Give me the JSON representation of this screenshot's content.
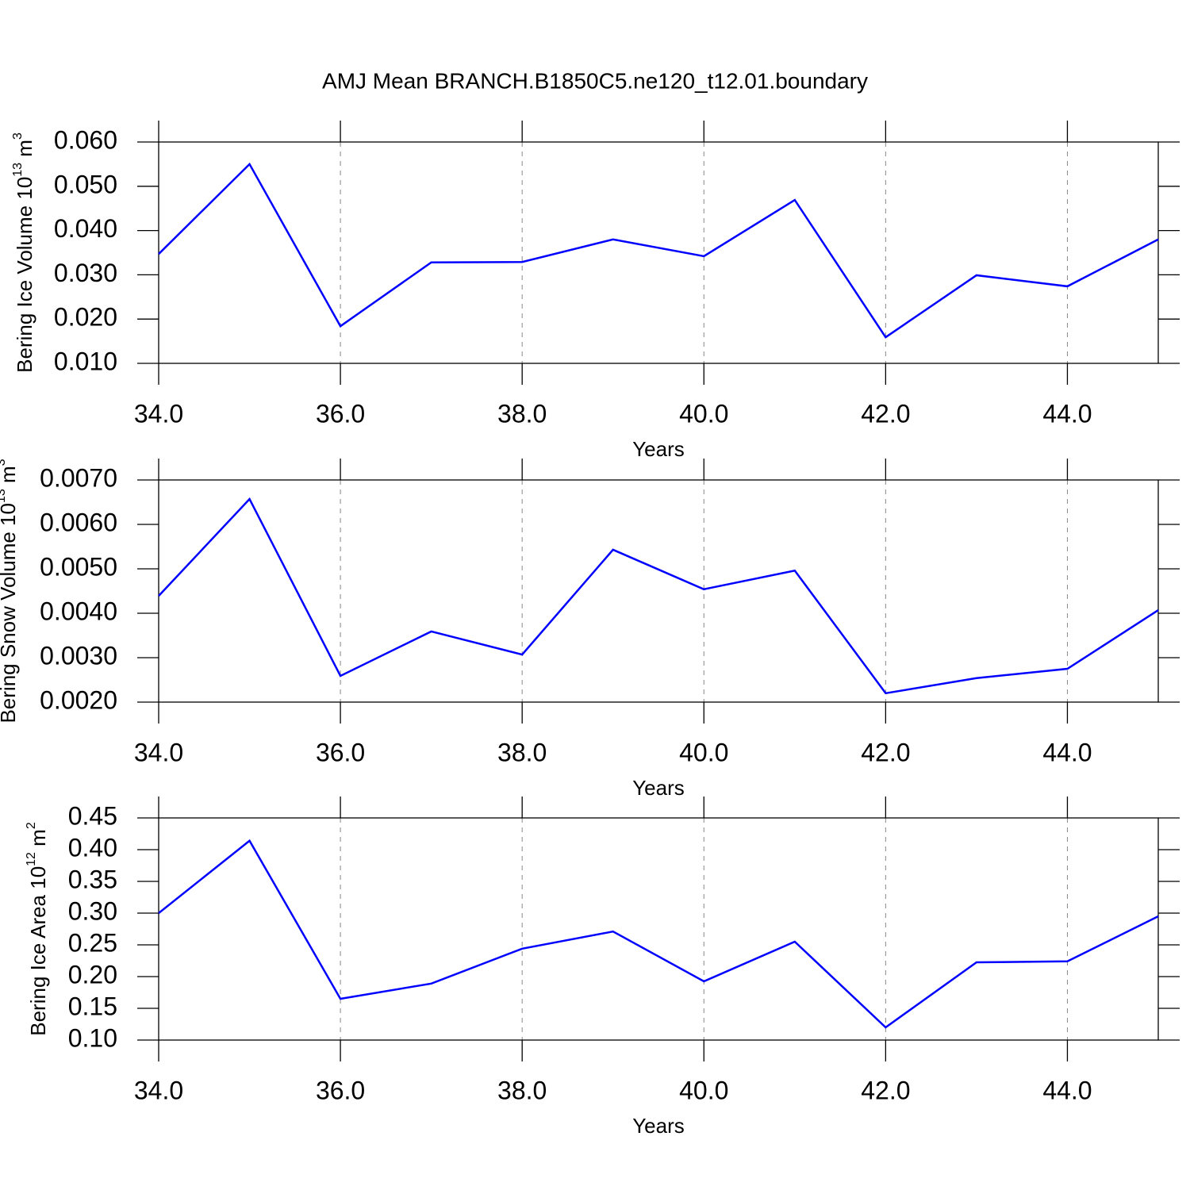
{
  "title": "AMJ Mean BRANCH.B1850C5.ne120_t12.01.boundary",
  "chart_data": [
    {
      "type": "line",
      "color": "#0000ff",
      "ylabel": {
        "text": "Bering Ice Volume 10",
        "exp": "13",
        "unit": " m",
        "unit_exp": "3"
      },
      "xlabel": "Years",
      "x": [
        34,
        35,
        36,
        37,
        38,
        39,
        40,
        41,
        42,
        43,
        44,
        45
      ],
      "values": [
        0.0347,
        0.055,
        0.0184,
        0.0328,
        0.0329,
        0.038,
        0.0342,
        0.0469,
        0.0159,
        0.0299,
        0.0274,
        0.038
      ],
      "xlim": [
        34,
        45
      ],
      "xticks": [
        {
          "value": 34,
          "label": "34.0"
        },
        {
          "value": 36,
          "label": "36.0"
        },
        {
          "value": 38,
          "label": "38.0"
        },
        {
          "value": 40,
          "label": "40.0"
        },
        {
          "value": 42,
          "label": "42.0"
        },
        {
          "value": 44,
          "label": "44.0"
        }
      ],
      "ylim": [
        0.01,
        0.06
      ],
      "yticks": [
        {
          "value": 0.01,
          "label": "0.010"
        },
        {
          "value": 0.02,
          "label": "0.020"
        },
        {
          "value": 0.03,
          "label": "0.030"
        },
        {
          "value": 0.04,
          "label": "0.040"
        },
        {
          "value": 0.05,
          "label": "0.050"
        },
        {
          "value": 0.06,
          "label": "0.060"
        }
      ],
      "xgrid": true
    },
    {
      "type": "line",
      "color": "#0000ff",
      "ylabel": {
        "text": "Bering Snow Volume 10",
        "exp": "13",
        "unit": " m",
        "unit_exp": "3"
      },
      "xlabel": "Years",
      "x": [
        34,
        35,
        36,
        37,
        38,
        39,
        40,
        41,
        42,
        43,
        44,
        45
      ],
      "values": [
        0.00439,
        0.00657,
        0.00259,
        0.00359,
        0.00307,
        0.00543,
        0.00454,
        0.00496,
        0.0022,
        0.00254,
        0.00275,
        0.00407
      ],
      "xlim": [
        34,
        45
      ],
      "xticks": [
        {
          "value": 34,
          "label": "34.0"
        },
        {
          "value": 36,
          "label": "36.0"
        },
        {
          "value": 38,
          "label": "38.0"
        },
        {
          "value": 40,
          "label": "40.0"
        },
        {
          "value": 42,
          "label": "42.0"
        },
        {
          "value": 44,
          "label": "44.0"
        }
      ],
      "ylim": [
        0.002,
        0.007
      ],
      "yticks": [
        {
          "value": 0.002,
          "label": "0.0020"
        },
        {
          "value": 0.003,
          "label": "0.0030"
        },
        {
          "value": 0.004,
          "label": "0.0040"
        },
        {
          "value": 0.005,
          "label": "0.0050"
        },
        {
          "value": 0.006,
          "label": "0.0060"
        },
        {
          "value": 0.007,
          "label": "0.0070"
        }
      ],
      "xgrid": true
    },
    {
      "type": "line",
      "color": "#0000ff",
      "ylabel": {
        "text": "Bering Ice Area 10",
        "exp": "12",
        "unit": " m",
        "unit_exp": "2"
      },
      "xlabel": "Years",
      "x": [
        34,
        35,
        36,
        37,
        38,
        39,
        40,
        41,
        42,
        43,
        44,
        45
      ],
      "values": [
        0.3,
        0.414,
        0.165,
        0.189,
        0.244,
        0.271,
        0.1925,
        0.255,
        0.12,
        0.2225,
        0.224,
        0.295
      ],
      "xlim": [
        34,
        45
      ],
      "xticks": [
        {
          "value": 34,
          "label": "34.0"
        },
        {
          "value": 36,
          "label": "36.0"
        },
        {
          "value": 38,
          "label": "38.0"
        },
        {
          "value": 40,
          "label": "40.0"
        },
        {
          "value": 42,
          "label": "42.0"
        },
        {
          "value": 44,
          "label": "44.0"
        }
      ],
      "ylim": [
        0.1,
        0.45
      ],
      "yticks": [
        {
          "value": 0.1,
          "label": "0.10"
        },
        {
          "value": 0.15,
          "label": "0.15"
        },
        {
          "value": 0.2,
          "label": "0.20"
        },
        {
          "value": 0.25,
          "label": "0.25"
        },
        {
          "value": 0.3,
          "label": "0.30"
        },
        {
          "value": 0.35,
          "label": "0.35"
        },
        {
          "value": 0.4,
          "label": "0.40"
        },
        {
          "value": 0.45,
          "label": "0.45"
        }
      ],
      "xgrid": true
    }
  ]
}
